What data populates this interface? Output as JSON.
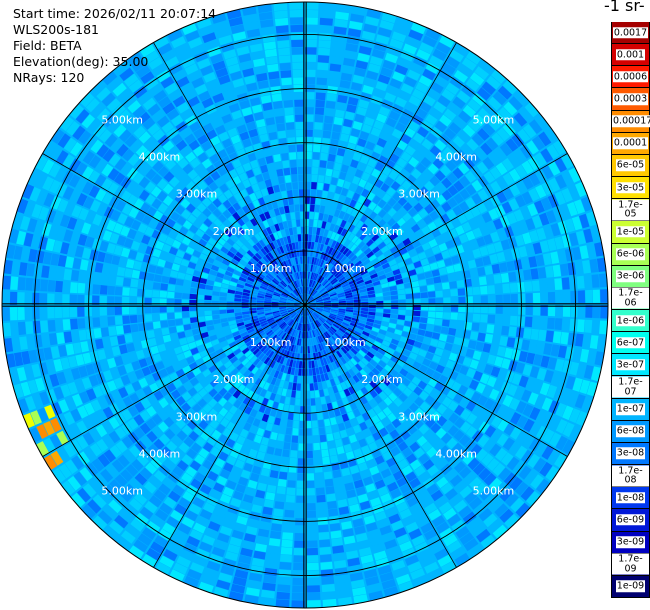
{
  "info": {
    "start_time": "Start time: 2026/02/11 20:07:14",
    "instrument": "WLS200s-181",
    "field": "Field: BETA",
    "elevation": "Elevation(deg): 35.00",
    "nrays": "NRays: 120"
  },
  "colorbar": {
    "unit_title": "-1 sr-",
    "labels": [
      "0.0017",
      "0.001",
      "0.0006",
      "0.0003",
      "0.00017",
      "0.0001",
      "6e-05",
      "3e-05",
      "1.7e-05",
      "1e-05",
      "6e-06",
      "3e-06",
      "1.7e-06",
      "1e-06",
      "6e-07",
      "3e-07",
      "1.7e-07",
      "1e-07",
      "6e-08",
      "3e-08",
      "1.7e-08",
      "1e-08",
      "6e-09",
      "3e-09",
      "1.7e-09",
      "1e-09"
    ],
    "colors": [
      "#a50000",
      "#d40000",
      "#ff1a00",
      "#ff5a00",
      "#ff8c00",
      "#ffa800",
      "#ffc800",
      "#ffe000",
      "#f0ff00",
      "#ccff33",
      "#a8ff55",
      "#80ff80",
      "#55ffaa",
      "#33ffcc",
      "#00ffee",
      "#00e8ff",
      "#00cfff",
      "#00b5ff",
      "#0099ff",
      "#0078ff",
      "#0058ff",
      "#0038f0",
      "#0018d8",
      "#0000c0",
      "#00009a",
      "#000070"
    ]
  },
  "chart_data": {
    "type": "heatmap",
    "projection": "polar PPI",
    "field": "BETA",
    "elevation_deg": 35.0,
    "nrays": 120,
    "range_rings_km": [
      1.0,
      2.0,
      3.0,
      4.0,
      5.0
    ],
    "ring_labels": [
      "1.00km",
      "2.00km",
      "3.00km",
      "4.00km",
      "5.00km"
    ],
    "color_scale": "log",
    "value_range": [
      1e-09,
      0.0017
    ]
  }
}
